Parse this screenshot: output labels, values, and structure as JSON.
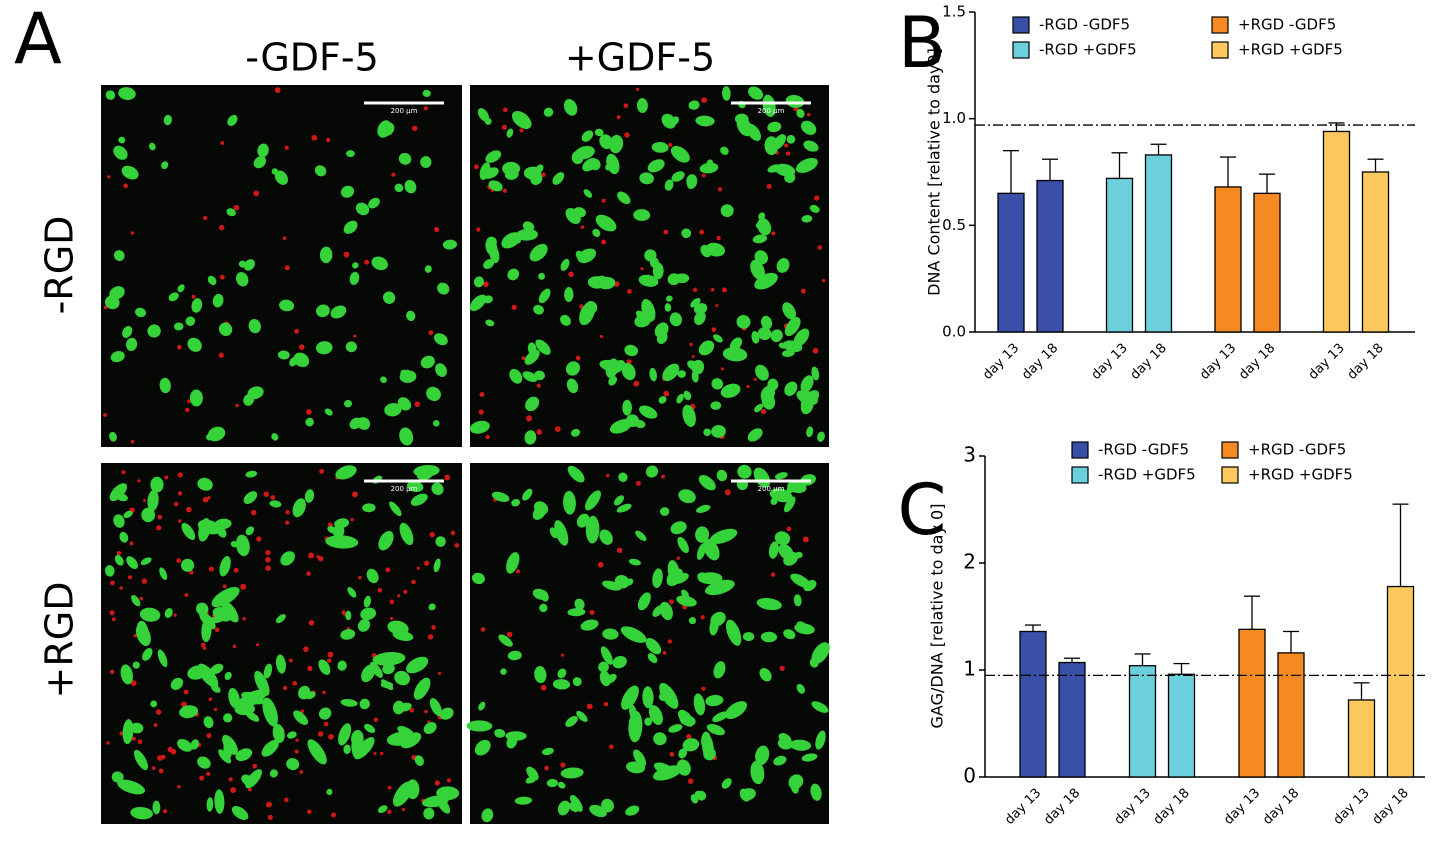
{
  "panel_a": {
    "label": "A",
    "columns": [
      "-GDF-5",
      "+GDF-5"
    ],
    "rows": [
      "-RGD",
      "+RGD"
    ],
    "scale_bar": "200 µm"
  },
  "chart_data": [
    {
      "panel_label": "B",
      "type": "bar",
      "y_label": "DNA Content [relative to day0]",
      "categories": [
        "day 13",
        "day 18"
      ],
      "series": [
        {
          "name": "-RGD -GDF5",
          "color": "#3a4fa8",
          "values": [
            0.65,
            0.71
          ],
          "errors": [
            0.2,
            0.1
          ]
        },
        {
          "name": "-RGD +GDF5",
          "color": "#6ccfdc",
          "values": [
            0.72,
            0.83
          ],
          "errors": [
            0.12,
            0.05
          ]
        },
        {
          "name": "+RGD -GDF5",
          "color": "#f58a22",
          "values": [
            0.68,
            0.65
          ],
          "errors": [
            0.14,
            0.09
          ]
        },
        {
          "name": "+RGD +GDF5",
          "color": "#fdc95e",
          "values": [
            0.94,
            0.75
          ],
          "errors": [
            0.04,
            0.06
          ]
        }
      ],
      "ylim": [
        0,
        1.5
      ],
      "yticks": [
        {
          "value": 0,
          "label": "0.0"
        },
        0.5,
        {
          "value": 1,
          "label": "1.0"
        },
        1.5
      ],
      "reference_line": 0.97
    },
    {
      "panel_label": "C",
      "type": "bar",
      "y_label": "GAG/DNA [relative to day 0]",
      "categories": [
        "day 13",
        "day 18"
      ],
      "series": [
        {
          "name": "-RGD -GDF5",
          "color": "#3a4fa8",
          "values": [
            1.36,
            1.07
          ],
          "errors": [
            0.06,
            0.04
          ]
        },
        {
          "name": "-RGD +GDF5",
          "color": "#6ccfdc",
          "values": [
            1.04,
            0.96
          ],
          "errors": [
            0.11,
            0.1
          ]
        },
        {
          "name": "+RGD -GDF5",
          "color": "#f58a22",
          "values": [
            1.38,
            1.16
          ],
          "errors": [
            0.31,
            0.2
          ]
        },
        {
          "name": "+RGD +GDF5",
          "color": "#fdc95e",
          "values": [
            0.72,
            1.78
          ],
          "errors": [
            0.16,
            0.77
          ]
        }
      ],
      "ylim": [
        0,
        3
      ],
      "yticks": [
        0,
        1,
        2,
        3
      ],
      "reference_line": 0.95
    }
  ]
}
